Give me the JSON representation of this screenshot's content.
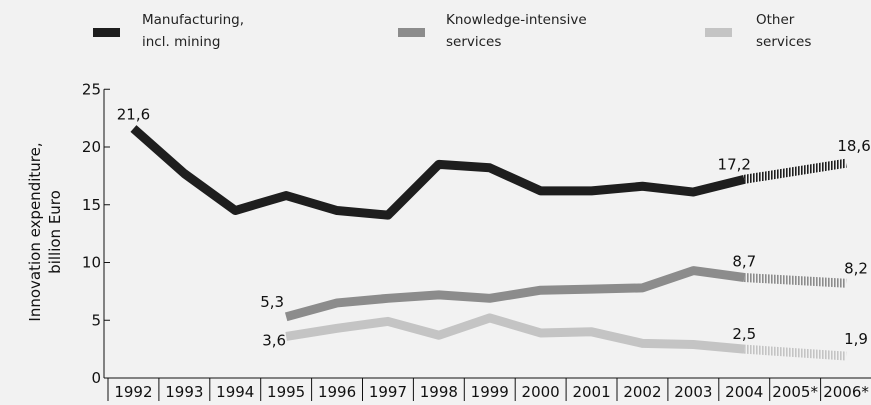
{
  "chart_data": {
    "type": "line",
    "title": "",
    "xlabel": "",
    "ylabel_lines": [
      "Innovation expenditure,",
      "billion Euro"
    ],
    "ylim": [
      0,
      25
    ],
    "yticks": [
      "0",
      "5",
      "10",
      "15",
      "20",
      "25"
    ],
    "categories": [
      "1992",
      "1993",
      "1994",
      "1995",
      "1996",
      "1997",
      "1998",
      "1999",
      "2000",
      "2001",
      "2002",
      "2003",
      "2004",
      "2005*",
      "2006*"
    ],
    "series": [
      {
        "key": "manufacturing",
        "name_lines": [
          "Manufacturing,",
          "incl. mining"
        ],
        "color": "#1e1e1e",
        "values": [
          21.6,
          17.7,
          14.5,
          15.8,
          14.5,
          14.1,
          18.5,
          18.2,
          16.2,
          16.2,
          16.6,
          16.1,
          17.2,
          null,
          18.6
        ],
        "forecast_from_index": 12
      },
      {
        "key": "knowledge",
        "name_lines": [
          "Knowledge-intensive",
          "services"
        ],
        "color": "#8c8c8c",
        "values": [
          null,
          null,
          null,
          5.3,
          6.5,
          6.9,
          7.2,
          6.9,
          7.6,
          7.7,
          7.8,
          9.3,
          8.7,
          null,
          8.2
        ],
        "forecast_from_index": 12
      },
      {
        "key": "other",
        "name_lines": [
          "Other",
          "services"
        ],
        "color": "#c4c4c4",
        "values": [
          null,
          null,
          null,
          3.6,
          4.3,
          4.9,
          3.7,
          5.2,
          3.9,
          4.0,
          3.0,
          2.9,
          2.5,
          null,
          1.9
        ],
        "forecast_from_index": 12
      }
    ],
    "data_labels": [
      {
        "series": "manufacturing",
        "index": 0,
        "text": "21,6"
      },
      {
        "series": "manufacturing",
        "index": 12,
        "text": "17,2"
      },
      {
        "series": "manufacturing",
        "index": 14,
        "text": "18,6"
      },
      {
        "series": "knowledge",
        "index": 3,
        "text": "5,3"
      },
      {
        "series": "knowledge",
        "index": 12,
        "text": "8,7"
      },
      {
        "series": "knowledge",
        "index": 14,
        "text": "8,2"
      },
      {
        "series": "other",
        "index": 3,
        "text": "3,6"
      },
      {
        "series": "other",
        "index": 12,
        "text": "2,5"
      },
      {
        "series": "other",
        "index": 14,
        "text": "1,9"
      }
    ],
    "legend_position": "top",
    "grid": false
  }
}
